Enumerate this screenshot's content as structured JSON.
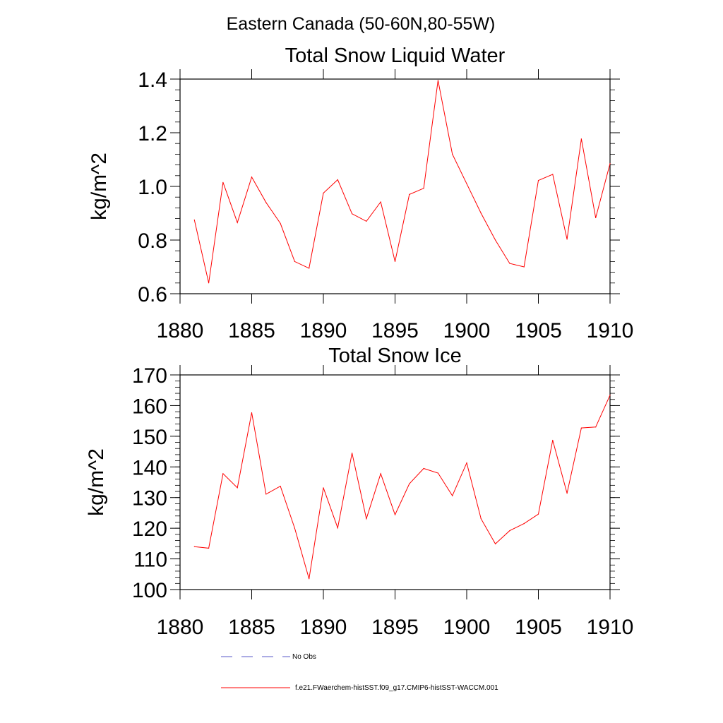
{
  "figure": {
    "title": "Eastern Canada (50-60N,80-55W)"
  },
  "legend": {
    "items": [
      {
        "label": "No Obs",
        "color": "#5a5ac8",
        "style": "dashed"
      },
      {
        "label": "f.e21.FWaerchem-histSST.f09_g17.CMIP6-histSST-WACCM.001",
        "color": "#ff0000",
        "style": "solid"
      }
    ]
  },
  "chart_data": [
    {
      "type": "line",
      "title": "Total Snow Liquid Water",
      "xlabel": "",
      "ylabel": "kg/m^2",
      "xlim": [
        1880,
        1910
      ],
      "ylim": [
        0.6,
        1.4
      ],
      "xticks": [
        1880,
        1885,
        1890,
        1895,
        1900,
        1905,
        1910
      ],
      "yticks": [
        0.6,
        0.8,
        1.0,
        1.2,
        1.4
      ],
      "ytick_labels": [
        "0.6",
        "0.8",
        "1.0",
        "1.2",
        "1.4"
      ],
      "y_minor_step": 0.04,
      "series": [
        {
          "name": "f.e21.FWaerchem-histSST.f09_g17.CMIP6-histSST-WACCM.001",
          "color": "#ff0000",
          "x": [
            1881,
            1882,
            1883,
            1884,
            1885,
            1886,
            1887,
            1888,
            1889,
            1890,
            1891,
            1892,
            1893,
            1894,
            1895,
            1896,
            1897,
            1898,
            1899,
            1900,
            1901,
            1902,
            1903,
            1904,
            1905,
            1906,
            1907,
            1908,
            1909,
            1910
          ],
          "y": [
            0.875,
            0.64,
            1.015,
            0.865,
            1.035,
            0.94,
            0.862,
            0.72,
            0.695,
            0.975,
            1.025,
            0.898,
            0.87,
            0.942,
            0.72,
            0.97,
            0.993,
            1.395,
            1.12,
            1.01,
            0.9,
            0.8,
            0.713,
            0.7,
            1.022,
            1.045,
            0.803,
            1.177,
            0.883,
            1.085
          ]
        }
      ]
    },
    {
      "type": "line",
      "title": "Total Snow Ice",
      "xlabel": "",
      "ylabel": "kg/m^2",
      "xlim": [
        1880,
        1910
      ],
      "ylim": [
        100,
        170
      ],
      "xticks": [
        1880,
        1885,
        1890,
        1895,
        1900,
        1905,
        1910
      ],
      "yticks": [
        100,
        110,
        120,
        130,
        140,
        150,
        160,
        170
      ],
      "ytick_labels": [
        "100",
        "110",
        "120",
        "130",
        "140",
        "150",
        "160",
        "170"
      ],
      "y_minor_step": 2,
      "series": [
        {
          "name": "f.e21.FWaerchem-histSST.f09_g17.CMIP6-histSST-WACCM.001",
          "color": "#ff0000",
          "x": [
            1881,
            1882,
            1883,
            1884,
            1885,
            1886,
            1887,
            1888,
            1889,
            1890,
            1891,
            1892,
            1893,
            1894,
            1895,
            1896,
            1897,
            1898,
            1899,
            1900,
            1901,
            1902,
            1903,
            1904,
            1905,
            1906,
            1907,
            1908,
            1909,
            1910
          ],
          "y": [
            114,
            113.5,
            137.8,
            133.2,
            157.7,
            131.1,
            133.7,
            120,
            103.5,
            133.2,
            120.1,
            144.5,
            123.1,
            137.8,
            124.4,
            134.5,
            139.5,
            138,
            130.6,
            141.3,
            123.1,
            114.9,
            119.2,
            121.5,
            124.6,
            148.7,
            131.4,
            152.7,
            153,
            163.4
          ]
        }
      ]
    }
  ]
}
